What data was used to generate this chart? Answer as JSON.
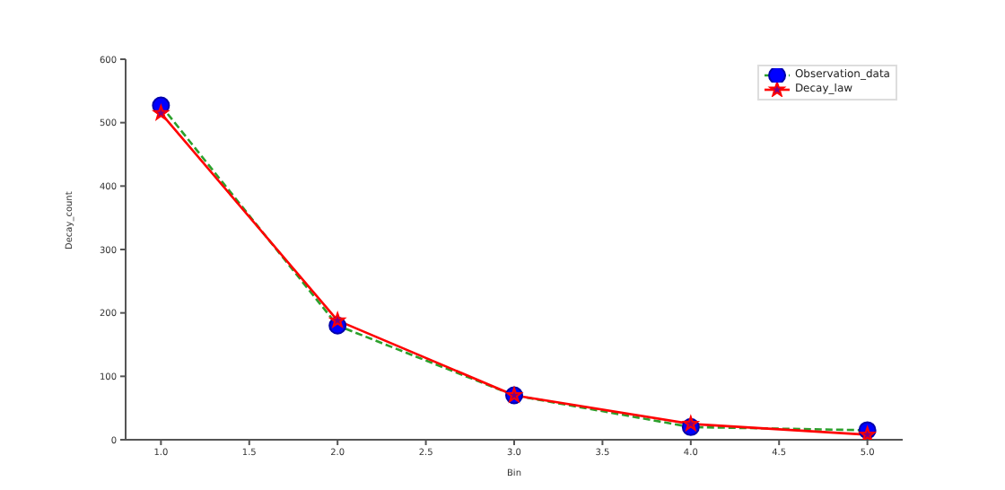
{
  "chart_data": {
    "type": "line",
    "xlabel": "Bin",
    "ylabel": "Decay_count",
    "x": [
      1,
      2,
      3,
      4,
      5
    ],
    "series": [
      {
        "name": "Observation_data",
        "color": "#2ca02c",
        "values": [
          527,
          180,
          70,
          20,
          15
        ],
        "line_style": "dashed",
        "marker": "circle"
      },
      {
        "name": "Decay_law",
        "color": "#ff0000",
        "values": [
          515,
          188,
          70,
          25,
          8
        ],
        "line_style": "solid",
        "marker": "star"
      }
    ],
    "xlim": [
      0.8,
      5.2
    ],
    "xticks": [
      {
        "value": 1,
        "label": "1.0"
      },
      1.5,
      {
        "value": 2,
        "label": "2.0"
      },
      2.5,
      {
        "value": 3,
        "label": "3.0"
      },
      3.5,
      {
        "value": 4,
        "label": "4.0"
      },
      4.5,
      {
        "value": 5,
        "label": "5.0"
      }
    ],
    "ylim": [
      0,
      600
    ],
    "yticks": [
      0,
      100,
      200,
      300,
      400,
      500,
      600
    ],
    "grid": false,
    "legend": "top right"
  }
}
